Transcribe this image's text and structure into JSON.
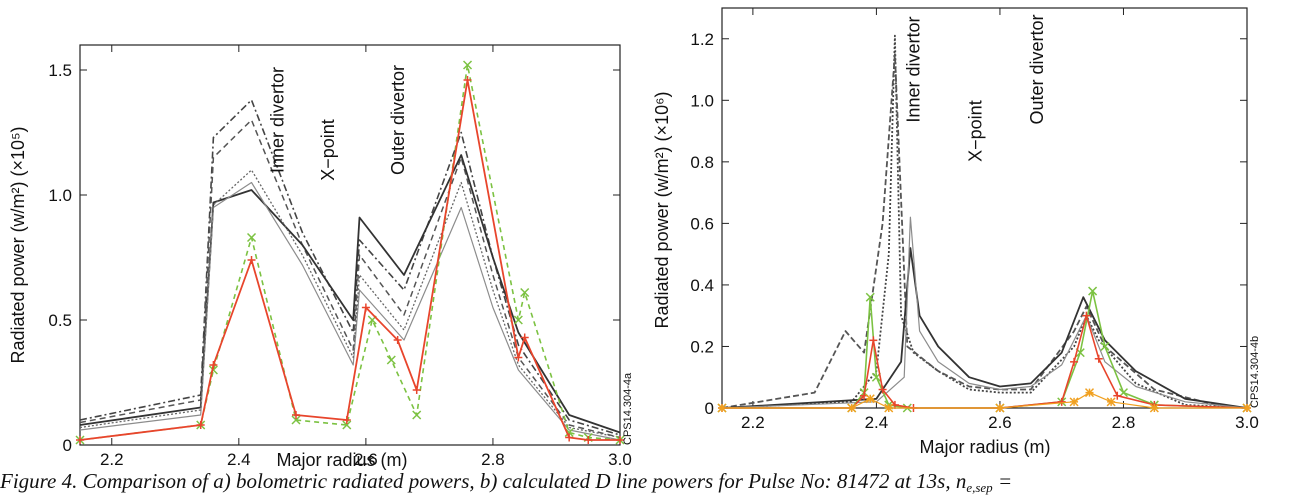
{
  "caption": {
    "text": "Figure 4. Comparison of a) bolometric radiated powers, b) calculated D line powers for Pulse No: 81472 at 13s, n",
    "subscript": "e,sep",
    "tail": " ="
  },
  "colors": {
    "red": "#e8452c",
    "green": "#7cc242",
    "black": "#333333",
    "gray": "#8c8c8c"
  },
  "chart_data": [
    {
      "type": "line",
      "panel": "a",
      "xlabel": "Major radius (m)",
      "ylabel": "Radiated power (w/m²) (×10⁵)",
      "xlim": [
        2.15,
        3.0
      ],
      "ylim": [
        0,
        1.6
      ],
      "xticks": [
        2.2,
        2.4,
        2.6,
        2.8,
        3.0
      ],
      "xtick_labels": [
        "2.2",
        "2.4",
        "2.6",
        "2.8",
        "3.0"
      ],
      "yticks": [
        0,
        0.5,
        1.0,
        1.5
      ],
      "ytick_labels": [
        "0",
        "0.5",
        "1.0",
        "1.5"
      ],
      "annotations": [
        {
          "text": "Inner divertor",
          "x": 2.47,
          "y": 1.3
        },
        {
          "text": "X−point",
          "x": 2.55,
          "y": 1.18
        },
        {
          "text": "Outer divertor",
          "x": 2.66,
          "y": 1.3
        }
      ],
      "code": "CPS14.304-4a",
      "series": [
        {
          "color": "#444444",
          "dash": "7 3 2 3",
          "width": 1.6,
          "x": [
            2.15,
            2.34,
            2.36,
            2.42,
            2.5,
            2.58,
            2.59,
            2.66,
            2.75,
            2.8,
            2.84,
            2.92,
            3.0
          ],
          "y": [
            0.1,
            0.2,
            1.23,
            1.38,
            0.85,
            0.45,
            0.82,
            0.62,
            1.25,
            0.75,
            0.4,
            0.1,
            0.04
          ]
        },
        {
          "color": "#555555",
          "dash": "6 4",
          "width": 1.5,
          "x": [
            2.15,
            2.34,
            2.36,
            2.42,
            2.5,
            2.58,
            2.59,
            2.66,
            2.75,
            2.8,
            2.84,
            2.92,
            3.0
          ],
          "y": [
            0.09,
            0.18,
            1.15,
            1.3,
            0.8,
            0.38,
            0.76,
            0.52,
            1.15,
            0.68,
            0.35,
            0.08,
            0.03
          ]
        },
        {
          "color": "#333333",
          "dash": "",
          "width": 1.8,
          "x": [
            2.15,
            2.34,
            2.36,
            2.42,
            2.5,
            2.58,
            2.59,
            2.66,
            2.75,
            2.8,
            2.84,
            2.92,
            3.0
          ],
          "y": [
            0.08,
            0.15,
            0.97,
            1.02,
            0.8,
            0.5,
            0.91,
            0.68,
            1.16,
            0.75,
            0.45,
            0.12,
            0.05
          ]
        },
        {
          "color": "#8c8c8c",
          "dash": "",
          "width": 1.2,
          "x": [
            2.15,
            2.34,
            2.36,
            2.42,
            2.5,
            2.58,
            2.59,
            2.66,
            2.75,
            2.8,
            2.84,
            2.92,
            3.0
          ],
          "y": [
            0.06,
            0.12,
            0.95,
            1.05,
            0.72,
            0.32,
            0.62,
            0.42,
            0.95,
            0.55,
            0.3,
            0.06,
            0.02
          ]
        },
        {
          "color": "#666666",
          "dash": "2 2",
          "width": 1.3,
          "x": [
            2.15,
            2.34,
            2.36,
            2.42,
            2.5,
            2.58,
            2.59,
            2.66,
            2.75,
            2.8,
            2.84,
            2.92,
            3.0
          ],
          "y": [
            0.07,
            0.14,
            0.96,
            1.1,
            0.76,
            0.35,
            0.68,
            0.46,
            1.05,
            0.62,
            0.32,
            0.07,
            0.03
          ]
        },
        {
          "color": "#7cc242",
          "dash": "5 4",
          "width": 1.6,
          "marker": "x",
          "x": [
            2.15,
            2.34,
            2.36,
            2.42,
            2.49,
            2.57,
            2.61,
            2.64,
            2.68,
            2.76,
            2.84,
            2.85,
            2.92,
            2.95,
            3.0
          ],
          "y": [
            0.02,
            0.08,
            0.3,
            0.83,
            0.1,
            0.08,
            0.5,
            0.34,
            0.12,
            1.52,
            0.5,
            0.61,
            0.05,
            0.03,
            0.02
          ]
        },
        {
          "color": "#e8452c",
          "dash": "",
          "width": 1.8,
          "marker": "+",
          "x": [
            2.15,
            2.34,
            2.36,
            2.42,
            2.49,
            2.57,
            2.6,
            2.65,
            2.68,
            2.76,
            2.84,
            2.85,
            2.92,
            2.95,
            3.0
          ],
          "y": [
            0.02,
            0.08,
            0.32,
            0.74,
            0.12,
            0.1,
            0.55,
            0.42,
            0.22,
            1.46,
            0.35,
            0.43,
            0.03,
            0.02,
            0.02
          ]
        }
      ]
    },
    {
      "type": "line",
      "panel": "b",
      "xlabel": "Major radius (m)",
      "ylabel": "Radiated power (w/m²) (×10⁶)",
      "xlim": [
        2.15,
        3.0
      ],
      "ylim": [
        0,
        1.3
      ],
      "xticks": [
        2.2,
        2.4,
        2.6,
        2.8,
        3.0
      ],
      "xtick_labels": [
        "2.2",
        "2.4",
        "2.6",
        "2.8",
        "3.0"
      ],
      "yticks": [
        0,
        0.2,
        0.4,
        0.6,
        0.8,
        1.0,
        1.2
      ],
      "ytick_labels": [
        "0",
        "0.2",
        "0.4",
        "0.6",
        "0.8",
        "1.0",
        "1.2"
      ],
      "annotations": [
        {
          "text": "Inner divertor",
          "x": 2.47,
          "y": 1.1
        },
        {
          "text": "X−point",
          "x": 2.57,
          "y": 0.9
        },
        {
          "text": "Outer divertor",
          "x": 2.67,
          "y": 1.1
        }
      ],
      "code": "CPS14.304-4b",
      "series": [
        {
          "color": "#444444",
          "dash": "2 2",
          "width": 1.8,
          "x": [
            2.15,
            2.36,
            2.4,
            2.42,
            2.43,
            2.44,
            2.46,
            2.5,
            2.55,
            2.6,
            2.65,
            2.72,
            2.74,
            2.76,
            2.82,
            2.9,
            3.0
          ],
          "y": [
            0.0,
            0.02,
            0.12,
            0.5,
            1.21,
            0.3,
            0.18,
            0.12,
            0.06,
            0.05,
            0.05,
            0.2,
            0.3,
            0.22,
            0.08,
            0.01,
            0.0
          ]
        },
        {
          "color": "#555555",
          "dash": "6 3",
          "width": 1.8,
          "x": [
            2.15,
            2.3,
            2.35,
            2.38,
            2.41,
            2.43,
            2.45,
            2.5,
            2.55,
            2.6,
            2.65,
            2.72,
            2.74,
            2.77,
            2.85,
            2.95,
            3.0
          ],
          "y": [
            0.0,
            0.05,
            0.25,
            0.18,
            0.6,
            1.15,
            0.2,
            0.12,
            0.07,
            0.06,
            0.06,
            0.25,
            0.33,
            0.2,
            0.06,
            0.01,
            0.0
          ]
        },
        {
          "color": "#333333",
          "dash": "",
          "width": 1.8,
          "x": [
            2.15,
            2.4,
            2.44,
            2.455,
            2.47,
            2.5,
            2.55,
            2.6,
            2.65,
            2.7,
            2.735,
            2.77,
            2.82,
            2.9,
            3.0
          ],
          "y": [
            0.0,
            0.03,
            0.15,
            0.52,
            0.3,
            0.2,
            0.1,
            0.07,
            0.08,
            0.18,
            0.36,
            0.22,
            0.12,
            0.03,
            0.0
          ]
        },
        {
          "color": "#8c8c8c",
          "dash": "",
          "width": 1.2,
          "x": [
            2.15,
            2.4,
            2.445,
            2.455,
            2.47,
            2.5,
            2.55,
            2.6,
            2.65,
            2.7,
            2.74,
            2.77,
            2.82,
            2.9,
            3.0
          ],
          "y": [
            0.0,
            0.02,
            0.1,
            0.62,
            0.25,
            0.15,
            0.08,
            0.06,
            0.07,
            0.14,
            0.3,
            0.15,
            0.07,
            0.02,
            0.0
          ]
        },
        {
          "color": "#7cc242",
          "dash": "",
          "width": 1.6,
          "marker": "x",
          "x": [
            2.15,
            2.36,
            2.38,
            2.39,
            2.4,
            2.42,
            2.45,
            2.6,
            2.7,
            2.73,
            2.75,
            2.77,
            2.8,
            2.85,
            3.0
          ],
          "y": [
            0.0,
            0.0,
            0.05,
            0.36,
            0.1,
            0.01,
            0.0,
            0.0,
            0.02,
            0.18,
            0.38,
            0.2,
            0.05,
            0.01,
            0.0
          ]
        },
        {
          "color": "#e8452c",
          "dash": "",
          "width": 1.6,
          "marker": "+",
          "x": [
            2.15,
            2.36,
            2.38,
            2.395,
            2.41,
            2.43,
            2.46,
            2.6,
            2.7,
            2.72,
            2.74,
            2.76,
            2.79,
            2.85,
            3.0
          ],
          "y": [
            0.0,
            0.0,
            0.04,
            0.22,
            0.06,
            0.01,
            0.0,
            0.0,
            0.02,
            0.15,
            0.3,
            0.16,
            0.04,
            0.01,
            0.0
          ]
        },
        {
          "color": "#f0a020",
          "dash": "",
          "width": 1.2,
          "marker": "*",
          "x": [
            2.15,
            2.36,
            2.39,
            2.42,
            2.6,
            2.72,
            2.745,
            2.78,
            2.85,
            3.0
          ],
          "y": [
            0.0,
            0.0,
            0.03,
            0.0,
            0.0,
            0.02,
            0.05,
            0.02,
            0.0,
            0.0
          ]
        }
      ]
    }
  ]
}
